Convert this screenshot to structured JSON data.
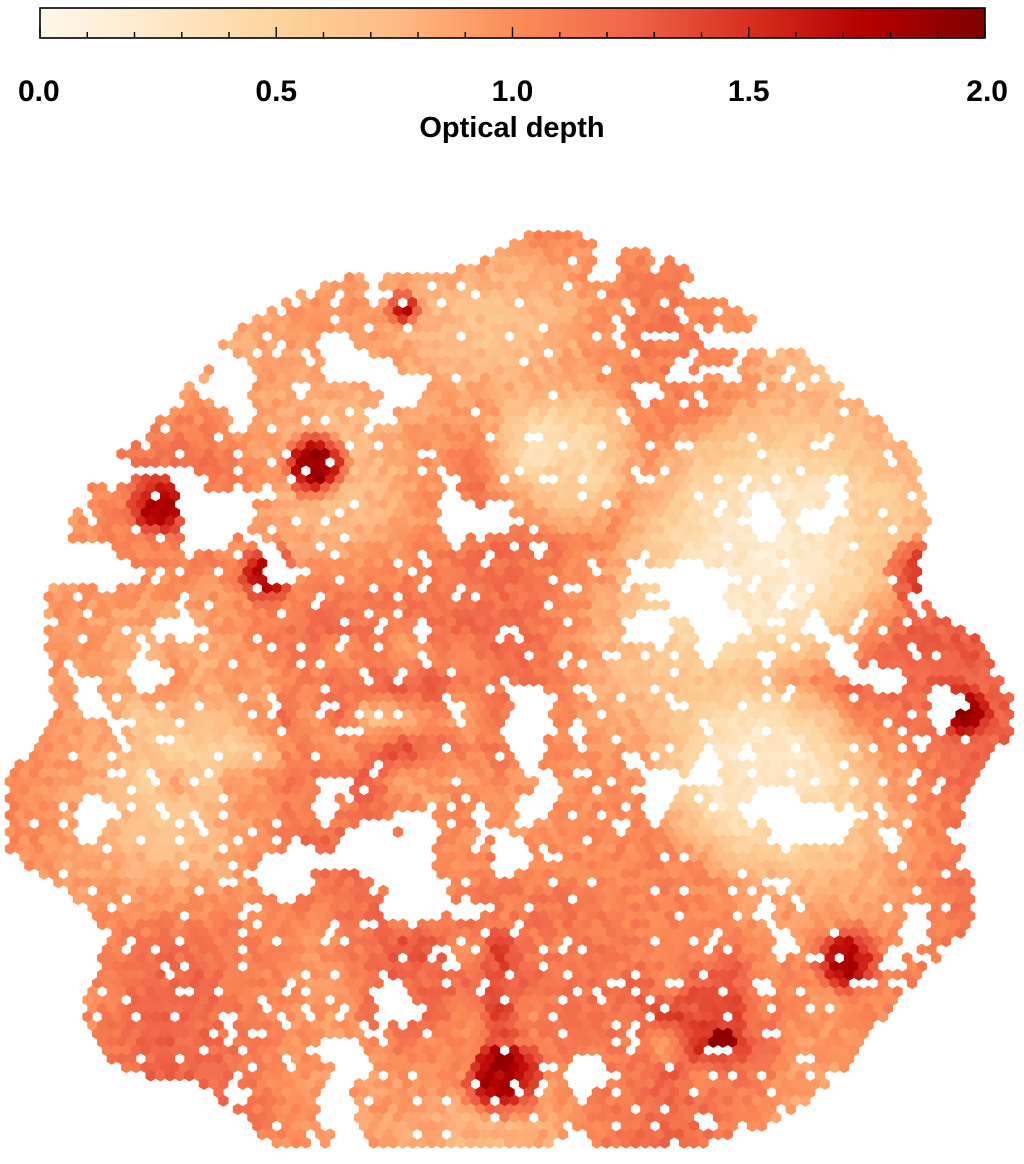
{
  "chart_data": {
    "type": "heatmap",
    "subtype": "hexbin-map",
    "title": "",
    "colorbar": {
      "label": "Optical depth",
      "orientation": "horizontal",
      "placement": "top",
      "range": [
        0.0,
        2.0
      ],
      "ticks": [
        {
          "value": 0.0,
          "label": "0.0"
        },
        {
          "value": 0.5,
          "label": "0.5"
        },
        {
          "value": 1.0,
          "label": "1.0"
        },
        {
          "value": 1.5,
          "label": "1.5"
        },
        {
          "value": 2.0,
          "label": "2.0"
        }
      ],
      "minor_tick_step": 0.1,
      "colormap": "OrRd",
      "colors": [
        "#fff7ec",
        "#fee8c8",
        "#fdd49e",
        "#fdbb84",
        "#fc8d59",
        "#ef6548",
        "#d7301f",
        "#b30000",
        "#7f0000"
      ]
    },
    "regions": [
      {
        "name": "",
        "shape": "disk",
        "center": [
          0.493,
          0.575
        ],
        "radius": 0.485,
        "depth_mean": 0.0,
        "depth_spread": 0.0
      },
      {
        "name": "",
        "shape": "disk",
        "center": [
          0.77,
          0.4
        ],
        "radius": 0.16,
        "depth_mean": 0.25,
        "depth_spread": 0.08
      },
      {
        "name": "",
        "shape": "disk",
        "center": [
          0.76,
          0.62
        ],
        "radius": 0.12,
        "depth_mean": 0.28,
        "depth_spread": 0.08
      },
      {
        "name": "",
        "shape": "disk",
        "center": [
          0.56,
          0.3
        ],
        "radius": 0.09,
        "depth_mean": 0.45,
        "depth_spread": 0.15
      },
      {
        "name": "",
        "shape": "disk",
        "center": [
          0.18,
          0.59
        ],
        "radius": 0.13,
        "depth_mean": 0.75,
        "depth_spread": 0.25
      },
      {
        "name": "",
        "shape": "disk",
        "center": [
          0.38,
          0.58
        ],
        "radius": 0.14,
        "depth_mean": 1.05,
        "depth_spread": 0.35
      },
      {
        "name": "",
        "shape": "disk",
        "center": [
          0.45,
          0.82
        ],
        "radius": 0.14,
        "depth_mean": 1.15,
        "depth_spread": 0.35
      },
      {
        "name": "",
        "shape": "disk",
        "center": [
          0.7,
          0.88
        ],
        "radius": 0.1,
        "depth_mean": 1.25,
        "depth_spread": 0.35
      },
      {
        "name": "",
        "shape": "disk",
        "center": [
          0.15,
          0.35
        ],
        "radius": 0.035,
        "depth_mean": 1.75,
        "depth_spread": 0.15
      },
      {
        "name": "",
        "shape": "disk",
        "center": [
          0.31,
          0.31
        ],
        "radius": 0.04,
        "depth_mean": 1.8,
        "depth_spread": 0.15
      },
      {
        "name": "",
        "shape": "disk",
        "center": [
          0.26,
          0.42
        ],
        "radius": 0.035,
        "depth_mean": 1.7,
        "depth_spread": 0.2
      },
      {
        "name": "",
        "shape": "disk",
        "center": [
          0.5,
          0.93
        ],
        "radius": 0.05,
        "depth_mean": 1.8,
        "depth_spread": 0.15
      },
      {
        "name": "",
        "shape": "disk",
        "center": [
          0.72,
          0.89
        ],
        "radius": 0.04,
        "depth_mean": 1.85,
        "depth_spread": 0.1
      },
      {
        "name": "",
        "shape": "disk",
        "center": [
          0.85,
          0.81
        ],
        "radius": 0.04,
        "depth_mean": 1.7,
        "depth_spread": 0.15
      },
      {
        "name": "",
        "shape": "disk",
        "center": [
          0.97,
          0.56
        ],
        "radius": 0.03,
        "depth_mean": 1.75,
        "depth_spread": 0.15
      },
      {
        "name": "",
        "shape": "disk",
        "center": [
          0.4,
          0.15
        ],
        "radius": 0.02,
        "depth_mean": 1.7,
        "depth_spread": 0.15
      },
      {
        "name": "",
        "shape": "disk",
        "center": [
          0.92,
          0.42
        ],
        "radius": 0.04,
        "depth_mean": 1.4,
        "depth_spread": 0.3
      }
    ],
    "xlabel": "",
    "ylabel": "",
    "grid": false,
    "legend": "none"
  }
}
